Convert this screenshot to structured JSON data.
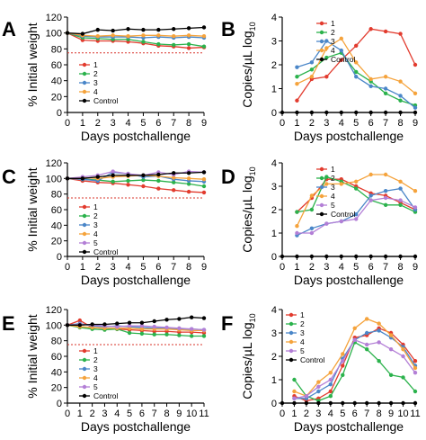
{
  "chart_data": [
    {
      "panel": "A",
      "type": "line",
      "xlabel": "Days postchallenge",
      "ylabel": "% Initial weight",
      "xlim": [
        0,
        9
      ],
      "ylim": [
        0,
        120
      ],
      "xticks": [
        0,
        1,
        2,
        3,
        4,
        5,
        6,
        7,
        8,
        9
      ],
      "yticks": [
        0,
        20,
        40,
        60,
        80,
        100,
        120
      ],
      "reference_line": 75,
      "series": [
        {
          "name": "1",
          "color": "#e23b2e",
          "x": [
            0,
            1,
            2,
            3,
            4,
            5,
            6,
            7,
            8,
            9
          ],
          "y": [
            100,
            91,
            90,
            90,
            89,
            87,
            84,
            83,
            81,
            82
          ]
        },
        {
          "name": "2",
          "color": "#2bb24c",
          "x": [
            0,
            1,
            2,
            3,
            4,
            5,
            6,
            7,
            8,
            9
          ],
          "y": [
            100,
            94,
            93,
            92,
            92,
            89,
            86,
            85,
            86,
            83
          ]
        },
        {
          "name": "3",
          "color": "#4a86c8",
          "x": [
            0,
            1,
            2,
            3,
            4,
            5,
            6,
            7,
            8,
            9
          ],
          "y": [
            100,
            96,
            95,
            95,
            95,
            94,
            95,
            94,
            95,
            94
          ]
        },
        {
          "name": "4",
          "color": "#f5a33c",
          "x": [
            0,
            1,
            2,
            3,
            4,
            5,
            6,
            7,
            8,
            9
          ],
          "y": [
            100,
            97,
            96,
            97,
            96,
            97,
            97,
            96,
            97,
            96
          ]
        },
        {
          "name": "Control",
          "color": "#000000",
          "x": [
            0,
            1,
            2,
            3,
            4,
            5,
            6,
            7,
            8,
            9
          ],
          "y": [
            100,
            99,
            104,
            103,
            105,
            104,
            104,
            105,
            106,
            107
          ]
        }
      ]
    },
    {
      "panel": "B",
      "type": "line",
      "xlabel": "Days postchallenge",
      "ylabel": "Copies/µL log",
      "ylabel_sub": "10",
      "xlim": [
        0,
        9
      ],
      "ylim": [
        0,
        4
      ],
      "xticks": [
        0,
        1,
        2,
        3,
        4,
        5,
        6,
        7,
        8,
        9
      ],
      "yticks": [
        0,
        1,
        2,
        3,
        4
      ],
      "series": [
        {
          "name": "1",
          "color": "#e23b2e",
          "x": [
            1,
            2,
            3,
            4,
            5,
            6,
            7,
            8,
            9
          ],
          "y": [
            0.5,
            1.4,
            1.5,
            2.2,
            2.8,
            3.5,
            3.4,
            3.3,
            2.0
          ]
        },
        {
          "name": "2",
          "color": "#2bb24c",
          "x": [
            1,
            2,
            3,
            4,
            5,
            6,
            7,
            8,
            9
          ],
          "y": [
            1.5,
            1.8,
            2.3,
            2.5,
            1.7,
            1.3,
            0.8,
            0.5,
            0.3
          ]
        },
        {
          "name": "3",
          "color": "#4a86c8",
          "x": [
            1,
            2,
            3,
            4,
            5,
            6,
            7,
            8,
            9
          ],
          "y": [
            1.9,
            2.1,
            3.0,
            2.6,
            1.5,
            1.1,
            1.0,
            0.7,
            0.2
          ]
        },
        {
          "name": "4",
          "color": "#f5a33c",
          "x": [
            1,
            2,
            3,
            4,
            5,
            6,
            7,
            8,
            9
          ],
          "y": [
            1.2,
            1.5,
            2.7,
            3.1,
            2.1,
            1.4,
            1.5,
            1.3,
            0.8
          ]
        },
        {
          "name": "Control",
          "color": "#000000",
          "x": [
            0,
            1,
            2,
            3,
            4,
            5,
            6,
            7,
            8,
            9
          ],
          "y": [
            0,
            0,
            0,
            0,
            0,
            0,
            0,
            0,
            0,
            0
          ]
        }
      ]
    },
    {
      "panel": "C",
      "type": "line",
      "xlabel": "Days postchallenge",
      "ylabel": "% Initial weight",
      "xlim": [
        0,
        9
      ],
      "ylim": [
        0,
        120
      ],
      "xticks": [
        0,
        1,
        2,
        3,
        4,
        5,
        6,
        7,
        8,
        9
      ],
      "yticks": [
        0,
        20,
        40,
        60,
        80,
        100,
        120
      ],
      "reference_line": 75,
      "series": [
        {
          "name": "1",
          "color": "#e23b2e",
          "x": [
            0,
            1,
            2,
            3,
            4,
            5,
            6,
            7,
            8,
            9
          ],
          "y": [
            100,
            97,
            95,
            94,
            92,
            90,
            87,
            85,
            83,
            82
          ]
        },
        {
          "name": "2",
          "color": "#2bb24c",
          "x": [
            0,
            1,
            2,
            3,
            4,
            5,
            6,
            7,
            8,
            9
          ],
          "y": [
            100,
            99,
            98,
            96,
            97,
            98,
            97,
            95,
            93,
            90
          ]
        },
        {
          "name": "3",
          "color": "#4a86c8",
          "x": [
            0,
            1,
            2,
            3,
            4,
            5,
            6,
            7,
            8,
            9
          ],
          "y": [
            100,
            99,
            97,
            108,
            106,
            102,
            103,
            99,
            97,
            96
          ]
        },
        {
          "name": "4",
          "color": "#f5a33c",
          "x": [
            0,
            1,
            2,
            3,
            4,
            5,
            6,
            7,
            8,
            9
          ],
          "y": [
            100,
            101,
            100,
            102,
            103,
            104,
            103,
            101,
            100,
            99
          ]
        },
        {
          "name": "5",
          "color": "#b37fd6",
          "x": [
            0,
            1,
            2,
            3,
            4,
            5,
            6,
            7,
            8,
            9
          ],
          "y": [
            100,
            102,
            104,
            109,
            106,
            104,
            108,
            105,
            109,
            108
          ]
        },
        {
          "name": "Control",
          "color": "#000000",
          "x": [
            0,
            1,
            2,
            3,
            4,
            5,
            6,
            7,
            8,
            9
          ],
          "y": [
            100,
            100,
            102,
            104,
            104,
            104,
            105,
            107,
            107,
            108
          ]
        }
      ]
    },
    {
      "panel": "D",
      "type": "line",
      "xlabel": "Days postchallenge",
      "ylabel": "Copies/µL log",
      "ylabel_sub": "10",
      "xlim": [
        0,
        9
      ],
      "ylim": [
        0,
        4
      ],
      "xticks": [
        0,
        1,
        2,
        3,
        4,
        5,
        6,
        7,
        8,
        9
      ],
      "yticks": [
        0,
        1,
        2,
        3,
        4
      ],
      "series": [
        {
          "name": "1",
          "color": "#e23b2e",
          "x": [
            1,
            2,
            3,
            4,
            5,
            6,
            7,
            8,
            9
          ],
          "y": [
            1.9,
            2.5,
            3.3,
            3.3,
            3.0,
            2.7,
            2.6,
            2.3,
            2.0
          ]
        },
        {
          "name": "2",
          "color": "#2bb24c",
          "x": [
            1,
            2,
            3,
            4,
            5,
            6,
            7,
            8,
            9
          ],
          "y": [
            1.9,
            2.0,
            3.4,
            3.2,
            2.9,
            2.4,
            2.2,
            2.2,
            1.9
          ]
        },
        {
          "name": "3",
          "color": "#4a86c8",
          "x": [
            1,
            2,
            3,
            4,
            5,
            6,
            7,
            8,
            9
          ],
          "y": [
            0.9,
            1.2,
            1.4,
            1.5,
            1.8,
            2.6,
            2.8,
            2.9,
            2.0
          ]
        },
        {
          "name": "4",
          "color": "#f5a33c",
          "x": [
            1,
            2,
            3,
            4,
            5,
            6,
            7,
            8,
            9
          ],
          "y": [
            1.3,
            2.6,
            3.1,
            3.1,
            3.2,
            3.5,
            3.5,
            3.2,
            2.8
          ]
        },
        {
          "name": "5",
          "color": "#b37fd6",
          "x": [
            1,
            2,
            3,
            4,
            5,
            6,
            7,
            8,
            9
          ],
          "y": [
            1.0,
            1.0,
            1.4,
            1.5,
            1.6,
            2.4,
            2.5,
            2.4,
            2.1
          ]
        },
        {
          "name": "Control",
          "color": "#000000",
          "x": [
            0,
            1,
            2,
            3,
            4,
            5,
            6,
            7,
            8,
            9
          ],
          "y": [
            0,
            0,
            0,
            0,
            0,
            0,
            0,
            0,
            0,
            0
          ]
        }
      ]
    },
    {
      "panel": "E",
      "type": "line",
      "xlabel": "Days postchallenge",
      "ylabel": "% Initial weight",
      "xlim": [
        0,
        11
      ],
      "ylim": [
        0,
        120
      ],
      "xticks": [
        0,
        1,
        2,
        3,
        4,
        5,
        6,
        7,
        8,
        9,
        10,
        11
      ],
      "yticks": [
        0,
        20,
        40,
        60,
        80,
        100,
        120
      ],
      "reference_line": 75,
      "series": [
        {
          "name": "1",
          "color": "#e23b2e",
          "x": [
            0,
            1,
            2,
            3,
            4,
            5,
            6,
            7,
            8,
            9,
            10,
            11
          ],
          "y": [
            100,
            106,
            97,
            96,
            95,
            94,
            93,
            92,
            92,
            91,
            91,
            90
          ]
        },
        {
          "name": "2",
          "color": "#2bb24c",
          "x": [
            0,
            1,
            2,
            3,
            4,
            5,
            6,
            7,
            8,
            9,
            10,
            11
          ],
          "y": [
            100,
            97,
            95,
            94,
            95,
            90,
            89,
            88,
            88,
            87,
            86,
            86
          ]
        },
        {
          "name": "3",
          "color": "#4a86c8",
          "x": [
            0,
            1,
            2,
            3,
            4,
            5,
            6,
            7,
            8,
            9,
            10,
            11
          ],
          "y": [
            100,
            102,
            99,
            98,
            99,
            98,
            97,
            96,
            96,
            95,
            95,
            94
          ]
        },
        {
          "name": "4",
          "color": "#f5a33c",
          "x": [
            0,
            1,
            2,
            3,
            4,
            5,
            6,
            7,
            8,
            9,
            10,
            11
          ],
          "y": [
            100,
            98,
            97,
            96,
            96,
            96,
            95,
            95,
            95,
            94,
            93,
            93
          ]
        },
        {
          "name": "5",
          "color": "#b37fd6",
          "x": [
            0,
            1,
            2,
            3,
            4,
            5,
            6,
            7,
            8,
            9,
            10,
            11
          ],
          "y": [
            100,
            101,
            100,
            99,
            98,
            99,
            99,
            98,
            97,
            96,
            95,
            94
          ]
        },
        {
          "name": "Control",
          "color": "#000000",
          "x": [
            0,
            1,
            2,
            3,
            4,
            5,
            6,
            7,
            8,
            9,
            10,
            11
          ],
          "y": [
            100,
            100,
            101,
            101,
            102,
            103,
            103,
            105,
            107,
            108,
            110,
            109
          ]
        }
      ]
    },
    {
      "panel": "F",
      "type": "line",
      "xlabel": "Days postchallenge",
      "ylabel": "Copies/µL log",
      "ylabel_sub": "10",
      "xlim": [
        0,
        11
      ],
      "ylim": [
        0,
        4
      ],
      "xticks": [
        0,
        1,
        2,
        3,
        4,
        5,
        6,
        7,
        8,
        9,
        10,
        11
      ],
      "yticks": [
        0,
        1,
        2,
        3,
        4
      ],
      "series": [
        {
          "name": "1",
          "color": "#e23b2e",
          "x": [
            1,
            2,
            3,
            4,
            5,
            6,
            7,
            8,
            9,
            10,
            11
          ],
          "y": [
            0.3,
            0.1,
            0.2,
            0.5,
            1.6,
            2.8,
            2.9,
            3.2,
            3.0,
            2.5,
            1.8
          ]
        },
        {
          "name": "2",
          "color": "#2bb24c",
          "x": [
            1,
            2,
            3,
            4,
            5,
            6,
            7,
            8,
            9,
            10,
            11
          ],
          "y": [
            1.0,
            0.3,
            0.1,
            0.3,
            1.2,
            2.6,
            2.3,
            1.8,
            1.2,
            1.1,
            0.5
          ]
        },
        {
          "name": "3",
          "color": "#4a86c8",
          "x": [
            1,
            2,
            3,
            4,
            5,
            6,
            7,
            8,
            9,
            10,
            11
          ],
          "y": [
            0.2,
            0.2,
            0.5,
            0.8,
            1.9,
            2.7,
            3.0,
            3.1,
            2.8,
            2.4,
            1.6
          ]
        },
        {
          "name": "4",
          "color": "#f5a33c",
          "x": [
            1,
            2,
            3,
            4,
            5,
            6,
            7,
            8,
            9,
            10,
            11
          ],
          "y": [
            0.5,
            0.3,
            0.9,
            1.3,
            2.1,
            3.2,
            3.6,
            3.4,
            2.9,
            2.3,
            1.5
          ]
        },
        {
          "name": "5",
          "color": "#b37fd6",
          "x": [
            1,
            2,
            3,
            4,
            5,
            6,
            7,
            8,
            9,
            10,
            11
          ],
          "y": [
            0.2,
            0.3,
            0.7,
            1.0,
            1.8,
            2.7,
            2.5,
            2.6,
            2.3,
            2.0,
            1.3
          ]
        },
        {
          "name": "Control",
          "color": "#000000",
          "x": [
            0,
            1,
            2,
            3,
            4,
            5,
            6,
            7,
            8,
            9,
            10,
            11
          ],
          "y": [
            0,
            0,
            0,
            0,
            0,
            0,
            0,
            0,
            0,
            0,
            0,
            0
          ]
        }
      ]
    }
  ]
}
